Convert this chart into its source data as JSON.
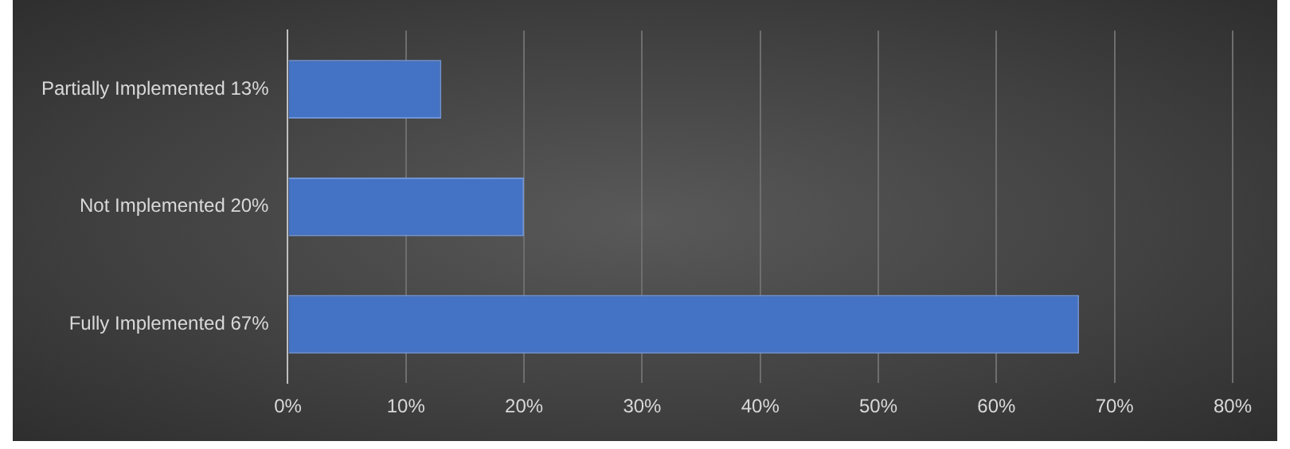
{
  "chart_data": {
    "type": "bar",
    "orientation": "horizontal",
    "categories": [
      "Partially Implemented 13%",
      "Not Implemented 20%",
      "Fully Implemented 67%"
    ],
    "values": [
      13,
      20,
      67
    ],
    "color": "#4472c4",
    "xlim": [
      0,
      80
    ],
    "xticks": [
      {
        "value": 0,
        "label": "0%"
      },
      {
        "value": 10,
        "label": "10%"
      },
      {
        "value": 20,
        "label": "20%"
      },
      {
        "value": 30,
        "label": "30%"
      },
      {
        "value": 40,
        "label": "40%"
      },
      {
        "value": 50,
        "label": "50%"
      },
      {
        "value": 60,
        "label": "60%"
      },
      {
        "value": 70,
        "label": "70%"
      },
      {
        "value": 80,
        "label": "80%"
      }
    ],
    "grid": "x",
    "legend": false
  }
}
